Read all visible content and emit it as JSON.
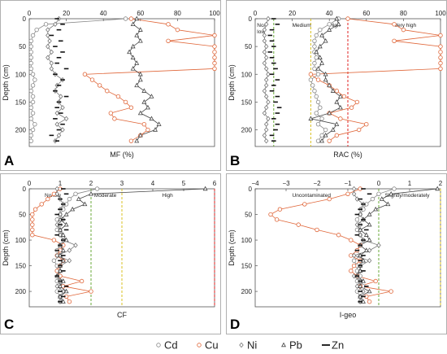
{
  "depth": [
    0,
    10,
    20,
    30,
    40,
    50,
    60,
    70,
    80,
    90,
    100,
    110,
    120,
    130,
    140,
    150,
    160,
    170,
    180,
    190,
    200,
    210,
    220
  ],
  "legend": [
    {
      "name": "Cd",
      "marker": "circle",
      "color": "#888888"
    },
    {
      "name": "Cu",
      "marker": "circle",
      "color": "#e0673a"
    },
    {
      "name": "Ni",
      "marker": "diamond",
      "color": "#777777"
    },
    {
      "name": "Pb",
      "marker": "triangle",
      "color": "#444444"
    },
    {
      "name": "Zn",
      "marker": "dash",
      "color": "#111111"
    }
  ],
  "chart_data": [
    {
      "type": "line",
      "panel": "A",
      "xlabel": "MF (%)",
      "ylabel": "Depth (cm)",
      "xlim": [
        0,
        100
      ],
      "xticks": [
        0,
        20,
        40,
        60,
        80,
        100
      ],
      "ylim": [
        0,
        230
      ],
      "yticks": [
        0,
        50,
        100,
        150,
        200
      ],
      "zones": [],
      "series": [
        {
          "name": "Cd",
          "values": [
            52,
            9,
            4,
            2,
            1,
            1,
            1,
            1,
            1,
            1,
            2,
            3,
            2,
            1,
            2,
            2,
            1,
            2,
            1,
            3,
            2,
            1,
            1
          ]
        },
        {
          "name": "Cu",
          "values": [
            55,
            75,
            80,
            100,
            75,
            100,
            100,
            100,
            100,
            100,
            30,
            34,
            38,
            42,
            48,
            52,
            55,
            44,
            46,
            62,
            64,
            60,
            55
          ]
        },
        {
          "name": "Ni",
          "values": [
            16,
            14,
            10,
            10,
            11,
            10,
            12,
            10,
            12,
            12,
            14,
            18,
            15,
            14,
            17,
            16,
            18,
            15,
            20,
            15,
            18,
            16,
            14
          ]
        },
        {
          "name": "Pb",
          "values": [
            58,
            56,
            60,
            58,
            60,
            56,
            54,
            56,
            58,
            56,
            60,
            60,
            58,
            62,
            66,
            62,
            64,
            60,
            66,
            70,
            68,
            60,
            58
          ]
        },
        {
          "name": "Zn",
          "values": [
            15,
            18,
            16,
            12,
            17,
            14,
            18,
            16,
            15,
            20,
            14,
            18,
            16,
            14,
            20,
            16,
            15,
            17,
            14,
            18,
            16,
            12,
            15
          ]
        }
      ]
    },
    {
      "type": "line",
      "panel": "B",
      "xlabel": "RAC (%)",
      "ylabel": "Depth (cm)",
      "xlim": [
        0,
        100
      ],
      "xticks": [
        0,
        20,
        40,
        60,
        80,
        100
      ],
      "ylim": [
        0,
        230
      ],
      "yticks": [
        0,
        50,
        100,
        150,
        200
      ],
      "zones": [
        {
          "label_lines": [
            "No/",
            "low"
          ],
          "at": 1,
          "line": 10,
          "color": "#6aaa3a"
        },
        {
          "label_lines": [
            "Medium"
          ],
          "at": 20,
          "line": 30,
          "color": "#d8c020"
        },
        {
          "label_lines": [
            "High"
          ],
          "at": 40,
          "line": 50,
          "color": "#e02020"
        },
        {
          "label_lines": [
            "Very high"
          ],
          "at": 75,
          "line": null,
          "color": null
        }
      ],
      "series": [
        {
          "name": "Cd",
          "values": [
            45,
            40,
            35,
            33,
            32,
            32,
            32,
            33,
            32,
            32,
            34,
            30,
            31,
            32,
            33,
            34,
            35,
            33,
            36,
            34,
            38,
            36,
            34
          ]
        },
        {
          "name": "Cu",
          "values": [
            50,
            75,
            80,
            100,
            75,
            100,
            100,
            100,
            100,
            100,
            30,
            34,
            40,
            44,
            48,
            55,
            52,
            40,
            46,
            60,
            56,
            44,
            40
          ]
        },
        {
          "name": "Ni",
          "values": [
            7,
            6,
            5,
            5,
            5,
            6,
            5,
            6,
            5,
            6,
            7,
            6,
            6,
            5,
            6,
            7,
            6,
            5,
            7,
            6,
            6,
            5,
            6
          ]
        },
        {
          "name": "Pb",
          "values": [
            44,
            45,
            40,
            36,
            38,
            35,
            33,
            35,
            36,
            34,
            38,
            38,
            40,
            42,
            46,
            44,
            46,
            40,
            30,
            44,
            42,
            38,
            36
          ]
        },
        {
          "name": "Zn",
          "values": [
            10,
            12,
            9,
            8,
            9,
            10,
            8,
            9,
            10,
            11,
            9,
            12,
            10,
            9,
            12,
            11,
            13,
            12,
            10,
            12,
            11,
            9,
            10
          ]
        }
      ]
    },
    {
      "type": "line",
      "panel": "C",
      "xlabel": "CF",
      "ylabel": "Depth (cm)",
      "xlim": [
        0,
        6
      ],
      "xticks": [
        0,
        1,
        2,
        3,
        4,
        5,
        6
      ],
      "ylim": [
        0,
        230
      ],
      "yticks": [
        0,
        50,
        100,
        150,
        200
      ],
      "zones": [
        {
          "label_lines": [
            "No/low"
          ],
          "at": 0.5,
          "line": 2,
          "color": "#6aaa3a"
        },
        {
          "label_lines": [
            "Moderate"
          ],
          "at": 2.1,
          "line": 3,
          "color": "#d8c020"
        },
        {
          "label_lines": [
            "High"
          ],
          "at": 4.3,
          "line": 6,
          "color": "#e02020"
        }
      ],
      "series": [
        {
          "name": "Cd",
          "values": [
            2.2,
            1.5,
            1.3,
            1.2,
            1.1,
            1.0,
            0.9,
            1.0,
            0.9,
            1.0,
            1.1,
            1.0,
            0.9,
            1.0,
            0.8,
            0.9,
            0.9,
            1.0,
            0.9,
            1.1,
            0.9,
            1.0,
            1.0
          ]
        },
        {
          "name": "Cu",
          "values": [
            1.0,
            0.8,
            0.6,
            0.4,
            0.2,
            0.1,
            0.1,
            0.1,
            0.1,
            0.1,
            0.8,
            1.1,
            1.0,
            0.9,
            1.1,
            1.0,
            0.9,
            1.0,
            1.7,
            1.1,
            2.0,
            1.2,
            1.3
          ]
        },
        {
          "name": "Ni",
          "values": [
            0.9,
            0.9,
            1.0,
            1.1,
            1.0,
            1.0,
            1.1,
            0.9,
            1.0,
            1.0,
            1.1,
            1.5,
            1.3,
            0.9,
            1.3,
            1.0,
            1.0,
            0.9,
            1.0,
            0.9,
            1.1,
            1.0,
            1.0
          ]
        },
        {
          "name": "Pb",
          "values": [
            5.7,
            2.0,
            1.6,
            1.8,
            1.4,
            1.2,
            1.0,
            1.2,
            1.0,
            1.1,
            1.2,
            1.0,
            1.1,
            1.0,
            1.1,
            1.0,
            1.0,
            0.9,
            1.1,
            1.0,
            1.2,
            1.0,
            1.1
          ]
        },
        {
          "name": "Zn",
          "values": [
            1.1,
            1.2,
            1.0,
            1.1,
            1.0,
            0.9,
            1.1,
            1.0,
            1.2,
            0.9,
            1.1,
            1.0,
            0.9,
            1.1,
            1.0,
            1.0,
            1.1,
            0.9,
            1.0,
            1.2,
            1.0,
            1.1,
            1.0
          ]
        }
      ]
    },
    {
      "type": "line",
      "panel": "D",
      "xlabel": "I-geo",
      "ylabel": "Depth (cm)",
      "xlim": [
        -4,
        2
      ],
      "xticks": [
        -4,
        -3,
        -2,
        -1,
        0,
        1,
        2
      ],
      "ylim": [
        0,
        230
      ],
      "yticks": [
        0,
        50,
        100,
        150,
        200
      ],
      "zones": [
        {
          "label_lines": [
            "Uncontaminated"
          ],
          "at": -2.8,
          "line": 0,
          "color": "#6aaa3a"
        },
        {
          "label_lines": [
            "Slightly/moderately"
          ],
          "at": 0.2,
          "line": 2,
          "color": "#d8c020"
        }
      ],
      "series": [
        {
          "name": "Cd",
          "values": [
            0.5,
            0.0,
            -0.2,
            -0.4,
            -0.5,
            -0.6,
            -0.7,
            -0.6,
            -0.7,
            -0.6,
            -0.5,
            -0.6,
            -0.7,
            -0.6,
            -0.8,
            -0.7,
            -0.7,
            -0.6,
            -0.7,
            -0.5,
            -0.7,
            -0.6,
            -0.6
          ]
        },
        {
          "name": "Cu",
          "values": [
            -0.6,
            -1.0,
            -1.6,
            -2.4,
            -3.2,
            -3.5,
            -3.3,
            -2.6,
            -2.0,
            -1.3,
            -0.9,
            -0.6,
            -0.7,
            -0.9,
            -0.6,
            -0.8,
            -0.9,
            -0.7,
            -0.1,
            -0.6,
            0.4,
            -0.4,
            -0.3
          ]
        },
        {
          "name": "Ni",
          "values": [
            -0.8,
            -0.8,
            -0.7,
            -0.5,
            -0.6,
            -0.6,
            -0.5,
            -0.7,
            -0.6,
            -0.6,
            -0.5,
            0.0,
            -0.3,
            -0.8,
            -0.3,
            -0.6,
            -0.6,
            -0.8,
            -0.6,
            -0.7,
            -0.5,
            -0.6,
            -0.6
          ]
        },
        {
          "name": "Pb",
          "values": [
            1.9,
            0.4,
            0.1,
            0.3,
            -0.1,
            -0.3,
            -0.5,
            -0.3,
            -0.6,
            -0.4,
            -0.3,
            -0.6,
            -0.4,
            -0.6,
            -0.5,
            -0.6,
            -0.6,
            -0.7,
            -0.5,
            -0.6,
            -0.3,
            -0.6,
            -0.5
          ]
        },
        {
          "name": "Zn",
          "values": [
            -0.5,
            -0.3,
            -0.6,
            -0.5,
            -0.6,
            -0.7,
            -0.5,
            -0.6,
            -0.4,
            -0.7,
            -0.5,
            -0.6,
            -0.7,
            -0.5,
            -0.6,
            -0.6,
            -0.5,
            -0.7,
            -0.6,
            -0.4,
            -0.6,
            -0.5,
            -0.6
          ]
        }
      ]
    }
  ]
}
